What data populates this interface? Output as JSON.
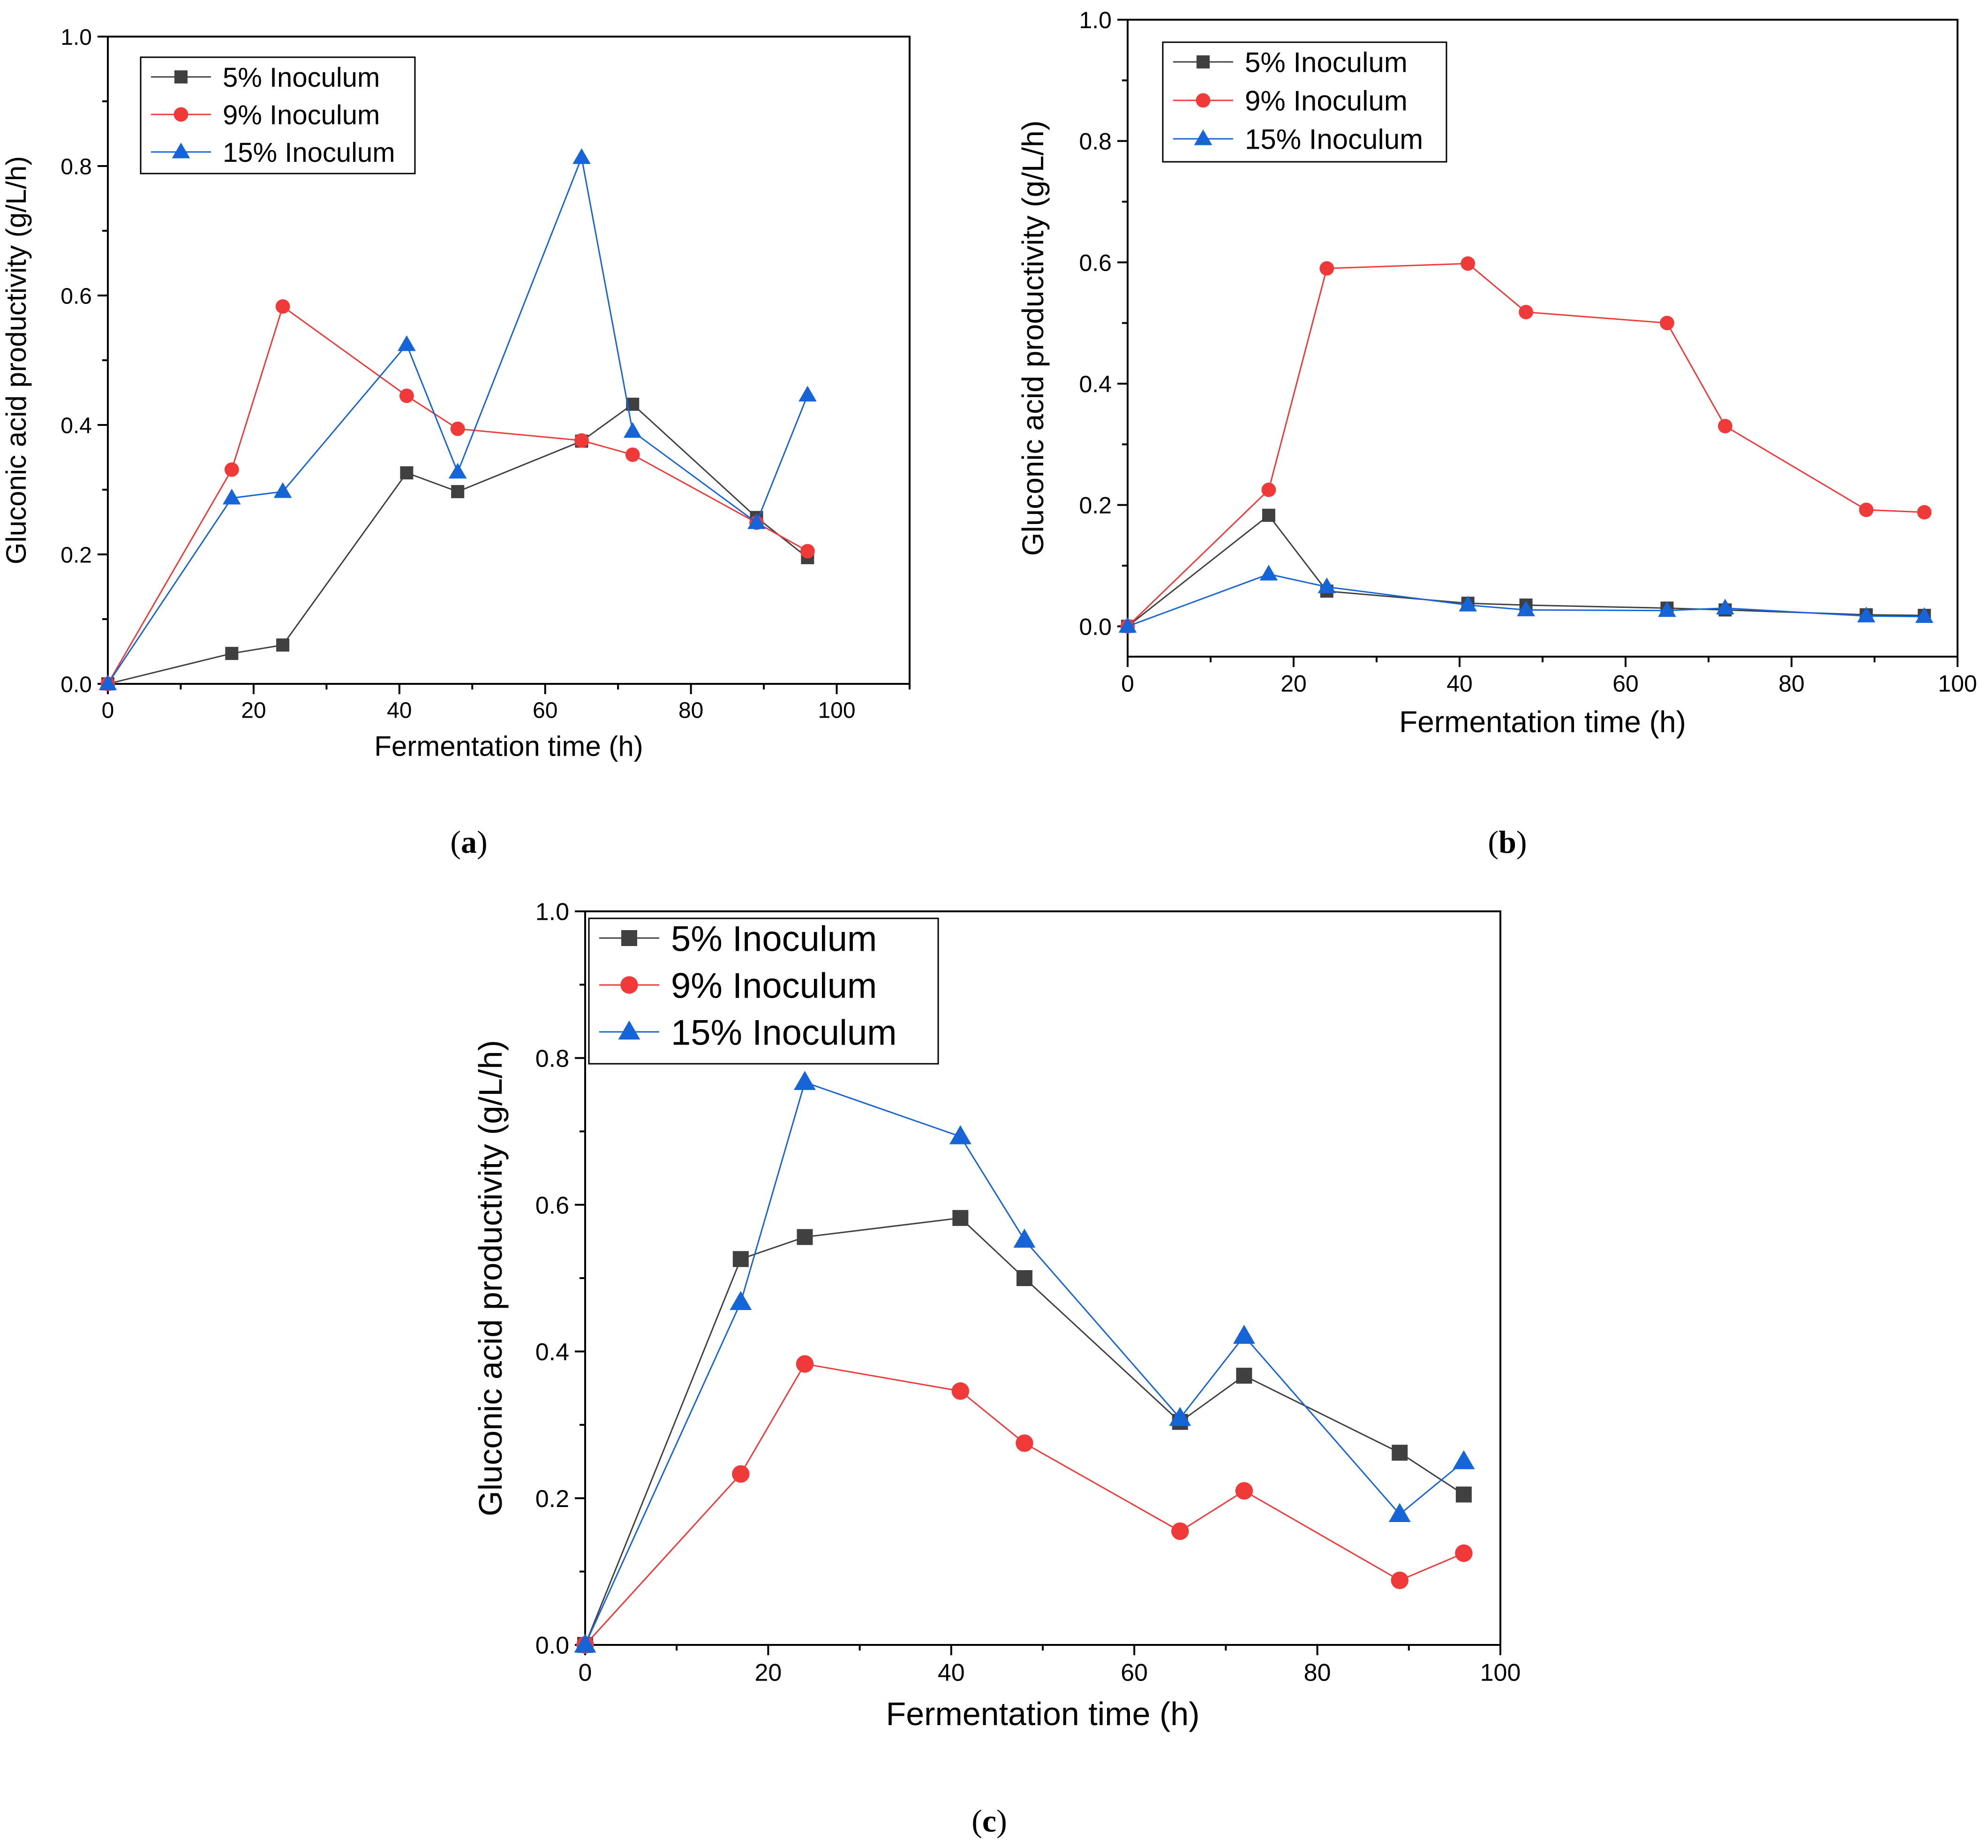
{
  "figure": {
    "panels": [
      {
        "letter": "a",
        "open": "(",
        "close": ")"
      },
      {
        "letter": "b",
        "open": "(",
        "close": ")"
      },
      {
        "letter": "c",
        "open": "(",
        "close": ")"
      }
    ]
  },
  "colors": {
    "series_5": "#404040",
    "series_9": "#f03a3a",
    "series_15": "#1565d8",
    "axis": "#000000"
  },
  "chart_data": [
    {
      "type": "line",
      "panel": "a",
      "xlabel": "Fermentation time (h)",
      "ylabel": "Gluconic acid productivity (g/L/h)",
      "xlim": [
        0,
        110
      ],
      "ylim": [
        0,
        1.0
      ],
      "xticks": [
        0,
        20,
        40,
        60,
        80,
        100
      ],
      "yticks": [
        0.0,
        0.2,
        0.4,
        0.6,
        0.8,
        1.0
      ],
      "xtick_labels": [
        "0",
        "20",
        "40",
        "60",
        "80",
        "100"
      ],
      "ytick_labels": [
        "0.0",
        "0.2",
        "0.4",
        "0.6",
        "0.8",
        "1.0"
      ],
      "legend_position": "top-left",
      "series": [
        {
          "name": "5% Inoculum",
          "marker": "square",
          "x": [
            0,
            17,
            24,
            41,
            48,
            65,
            72,
            89,
            96
          ],
          "values": [
            0.0,
            0.047,
            0.06,
            0.326,
            0.297,
            0.375,
            0.432,
            0.257,
            0.195
          ]
        },
        {
          "name": "9% Inoculum",
          "marker": "circle",
          "x": [
            0,
            17,
            24,
            41,
            48,
            65,
            72,
            89,
            96
          ],
          "values": [
            0.0,
            0.331,
            0.583,
            0.445,
            0.394,
            0.376,
            0.354,
            0.249,
            0.205
          ]
        },
        {
          "name": "15% Inoculum",
          "marker": "triangle",
          "x": [
            0,
            17,
            24,
            41,
            48,
            65,
            72,
            89,
            96
          ],
          "values": [
            0.0,
            0.287,
            0.297,
            0.524,
            0.327,
            0.813,
            0.39,
            0.249,
            0.446
          ]
        }
      ]
    },
    {
      "type": "line",
      "panel": "b",
      "xlabel": "Fermentation time (h)",
      "ylabel": "Gluconic acid productivity (g/L/h)",
      "xlim": [
        0,
        100
      ],
      "ylim": [
        -0.05,
        1.0
      ],
      "xticks": [
        0,
        20,
        40,
        60,
        80,
        100
      ],
      "yticks": [
        0.0,
        0.2,
        0.4,
        0.6,
        0.8,
        1.0
      ],
      "xtick_labels": [
        "0",
        "20",
        "40",
        "60",
        "80",
        "100"
      ],
      "ytick_labels": [
        "0.0",
        "0.2",
        "0.4",
        "0.6",
        "0.8",
        "1.0"
      ],
      "legend_position": "top-left",
      "series": [
        {
          "name": "5% Inoculum",
          "marker": "square",
          "x": [
            0,
            17,
            24,
            41,
            48,
            65,
            72,
            89,
            96
          ],
          "values": [
            0.0,
            0.183,
            0.058,
            0.038,
            0.035,
            0.03,
            0.027,
            0.019,
            0.018
          ]
        },
        {
          "name": "9% Inoculum",
          "marker": "circle",
          "x": [
            0,
            17,
            24,
            41,
            48,
            65,
            72,
            89,
            96
          ],
          "values": [
            0.0,
            0.225,
            0.59,
            0.598,
            0.518,
            0.5,
            0.33,
            0.192,
            0.188
          ]
        },
        {
          "name": "15% Inoculum",
          "marker": "triangle",
          "x": [
            0,
            17,
            24,
            41,
            48,
            65,
            72,
            89,
            96
          ],
          "values": [
            0.0,
            0.086,
            0.065,
            0.035,
            0.027,
            0.026,
            0.03,
            0.017,
            0.016
          ]
        }
      ]
    },
    {
      "type": "line",
      "panel": "c",
      "xlabel": "Fermentation time (h)",
      "ylabel": "Gluconic acid productivity (g/L/h)",
      "xlim": [
        0,
        100
      ],
      "ylim": [
        0,
        1.0
      ],
      "xticks": [
        0,
        20,
        40,
        60,
        80,
        100
      ],
      "yticks": [
        0.0,
        0.2,
        0.4,
        0.6,
        0.8,
        1.0
      ],
      "xtick_labels": [
        "0",
        "20",
        "40",
        "60",
        "80",
        "100"
      ],
      "ytick_labels": [
        "0.0",
        "0.2",
        "0.4",
        "0.6",
        "0.8",
        "1.0"
      ],
      "legend_position": "top-left",
      "series": [
        {
          "name": "5% Inoculum",
          "marker": "square",
          "x": [
            0,
            17,
            24,
            41,
            48,
            65,
            72,
            89,
            96
          ],
          "values": [
            0.0,
            0.526,
            0.556,
            0.582,
            0.5,
            0.304,
            0.367,
            0.262,
            0.205
          ]
        },
        {
          "name": "9% Inoculum",
          "marker": "circle",
          "x": [
            0,
            17,
            24,
            41,
            48,
            65,
            72,
            89,
            96
          ],
          "values": [
            0.0,
            0.233,
            0.383,
            0.346,
            0.275,
            0.155,
            0.21,
            0.088,
            0.125
          ]
        },
        {
          "name": "15% Inoculum",
          "marker": "triangle",
          "x": [
            0,
            17,
            24,
            41,
            48,
            65,
            72,
            89,
            96
          ],
          "values": [
            0.0,
            0.467,
            0.767,
            0.693,
            0.552,
            0.309,
            0.421,
            0.178,
            0.25
          ]
        }
      ]
    }
  ]
}
